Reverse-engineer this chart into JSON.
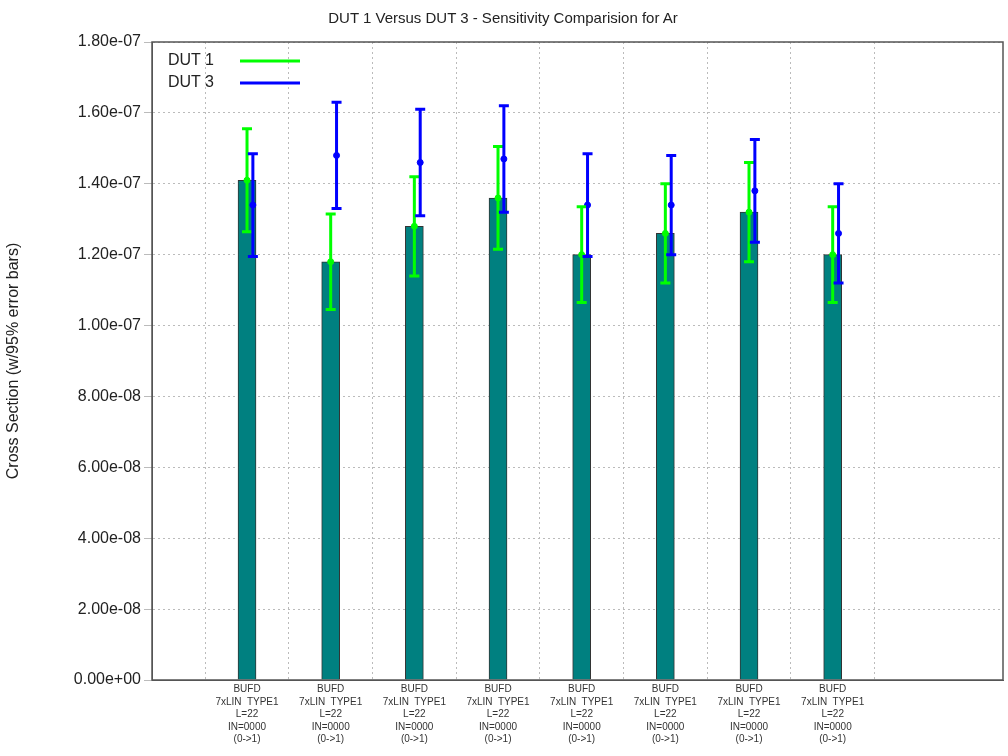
{
  "chart_data": {
    "type": "bar",
    "title": "DUT 1 Versus DUT 3 - Sensitivity Comparision for Ar",
    "ylabel": "Cross Section (w/95% error bars)",
    "categories": [
      "BUFD\n7xLIN  TYPE1\nL=22\nIN=0000\n(0->1)",
      "BUFD\n7xLIN  TYPE1\nL=22\nIN=0000\n(0->1)",
      "BUFD\n7xLIN  TYPE1\nL=22\nIN=0000\n(0->1)",
      "BUFD\n7xLIN  TYPE1\nL=22\nIN=0000\n(0->1)",
      "BUFD\n7xLIN  TYPE1\nL=22\nIN=0000\n(0->1)",
      "BUFD\n7xLIN  TYPE1\nL=22\nIN=0000\n(0->1)",
      "BUFD\n7xLIN  TYPE1\nL=22\nIN=0000\n(0->1)",
      "BUFD\n7xLIN  TYPE1\nL=22\nIN=0000\n(0->1)"
    ],
    "series": [
      {
        "color": "#008080",
        "values": [
          1.41e-07,
          1.18e-07,
          1.28e-07,
          1.36e-07,
          1.2e-07,
          1.26e-07,
          1.32e-07,
          1.2e-07
        ]
      },
      {
        "name": "DUT 1",
        "type": "scatter",
        "color": "#00ff00",
        "values": [
          1.41e-07,
          1.18e-07,
          1.28e-07,
          1.36e-07,
          1.2e-07,
          1.26e-07,
          1.32e-07,
          1.2e-07
        ],
        "errors": [
          1.45e-08,
          1.35e-08,
          1.4e-08,
          1.45e-08,
          1.35e-08,
          1.4e-08,
          1.4e-08,
          1.35e-08
        ]
      },
      {
        "name": "DUT 3",
        "type": "scatter",
        "color": "#0000ff",
        "values": [
          1.34e-07,
          1.48e-07,
          1.46e-07,
          1.47e-07,
          1.34e-07,
          1.34e-07,
          1.38e-07,
          1.26e-07
        ],
        "errors": [
          1.45e-08,
          1.5e-08,
          1.5e-08,
          1.5e-08,
          1.45e-08,
          1.4e-08,
          1.45e-08,
          1.4e-08
        ]
      }
    ],
    "ylim": [
      0,
      1.8e-07
    ],
    "yticks": [
      {
        "value": 0,
        "label": "0.00e+00"
      },
      {
        "value": 2e-08,
        "label": "2.00e-08"
      },
      {
        "value": 4e-08,
        "label": "4.00e-08"
      },
      {
        "value": 6e-08,
        "label": "6.00e-08"
      },
      {
        "value": 8e-08,
        "label": "8.00e-08"
      },
      {
        "value": 1e-07,
        "label": "1.00e-07"
      },
      {
        "value": 1.2e-07,
        "label": "1.20e-07"
      },
      {
        "value": 1.4e-07,
        "label": "1.40e-07"
      },
      {
        "value": 1.6e-07,
        "label": "1.60e-07"
      },
      {
        "value": 1.8e-07,
        "label": "1.80e-07"
      }
    ],
    "grid": true,
    "legend": "top left",
    "marker": "circle"
  }
}
